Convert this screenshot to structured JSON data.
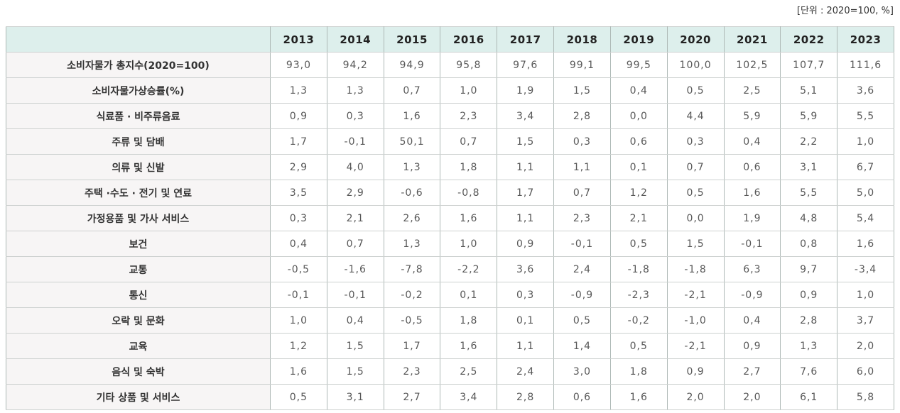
{
  "unit_note": "[단위 : 2020=100, %]",
  "table": {
    "corner_label": "",
    "years": [
      "2013",
      "2014",
      "2015",
      "2016",
      "2017",
      "2018",
      "2019",
      "2020",
      "2021",
      "2022",
      "2023"
    ],
    "rows": [
      {
        "label": "소비자물가 총지수(2020=100)",
        "values": [
          "93,0",
          "94,2",
          "94,9",
          "95,8",
          "97,6",
          "99,1",
          "99,5",
          "100,0",
          "102,5",
          "107,7",
          "111,6"
        ]
      },
      {
        "label": "소비자물가상승률(%)",
        "values": [
          "1,3",
          "1,3",
          "0,7",
          "1,0",
          "1,9",
          "1,5",
          "0,4",
          "0,5",
          "2,5",
          "5,1",
          "3,6"
        ]
      },
      {
        "label": "식료품 · 비주류음료",
        "values": [
          "0,9",
          "0,3",
          "1,6",
          "2,3",
          "3,4",
          "2,8",
          "0,0",
          "4,4",
          "5,9",
          "5,9",
          "5,5"
        ]
      },
      {
        "label": "주류 및 담배",
        "values": [
          "1,7",
          "-0,1",
          "50,1",
          "0,7",
          "1,5",
          "0,3",
          "0,6",
          "0,3",
          "0,4",
          "2,2",
          "1,0"
        ]
      },
      {
        "label": "의류 및 신발",
        "values": [
          "2,9",
          "4,0",
          "1,3",
          "1,8",
          "1,1",
          "1,1",
          "0,1",
          "0,7",
          "0,6",
          "3,1",
          "6,7"
        ]
      },
      {
        "label": "주택 ·수도 · 전기 및 연료",
        "values": [
          "3,5",
          "2,9",
          "-0,6",
          "-0,8",
          "1,7",
          "0,7",
          "1,2",
          "0,5",
          "1,6",
          "5,5",
          "5,0"
        ]
      },
      {
        "label": "가정용품 및 가사 서비스",
        "values": [
          "0,3",
          "2,1",
          "2,6",
          "1,6",
          "1,1",
          "2,3",
          "2,1",
          "0,0",
          "1,9",
          "4,8",
          "5,4"
        ]
      },
      {
        "label": "보건",
        "values": [
          "0,4",
          "0,7",
          "1,3",
          "1,0",
          "0,9",
          "-0,1",
          "0,5",
          "1,5",
          "-0,1",
          "0,8",
          "1,6"
        ]
      },
      {
        "label": "교통",
        "values": [
          "-0,5",
          "-1,6",
          "-7,8",
          "-2,2",
          "3,6",
          "2,4",
          "-1,8",
          "-1,8",
          "6,3",
          "9,7",
          "-3,4"
        ]
      },
      {
        "label": "통신",
        "values": [
          "-0,1",
          "-0,1",
          "-0,2",
          "0,1",
          "0,3",
          "-0,9",
          "-2,3",
          "-2,1",
          "-0,9",
          "0,9",
          "1,0"
        ]
      },
      {
        "label": "오락 및 문화",
        "values": [
          "1,0",
          "0,4",
          "-0,5",
          "1,8",
          "0,1",
          "0,5",
          "-0,2",
          "-1,0",
          "0,4",
          "2,8",
          "3,7"
        ]
      },
      {
        "label": "교육",
        "values": [
          "1,2",
          "1,5",
          "1,7",
          "1,6",
          "1,1",
          "1,4",
          "0,5",
          "-2,1",
          "0,9",
          "1,3",
          "2,0"
        ]
      },
      {
        "label": "음식 및 숙박",
        "values": [
          "1,6",
          "1,5",
          "2,3",
          "2,5",
          "2,4",
          "3,0",
          "1,8",
          "0,9",
          "2,7",
          "7,6",
          "6,0"
        ]
      },
      {
        "label": "기타 상품 및 서비스",
        "values": [
          "0,5",
          "3,1",
          "2,7",
          "3,4",
          "2,8",
          "0,6",
          "1,6",
          "2,0",
          "2,0",
          "6,1",
          "5,8"
        ]
      }
    ]
  },
  "chart_data": {
    "type": "table",
    "unit_note": "[단위 : 2020=100, %]",
    "columns": [
      2013,
      2014,
      2015,
      2016,
      2017,
      2018,
      2019,
      2020,
      2021,
      2022,
      2023
    ],
    "rows": [
      {
        "label": "소비자물가 총지수(2020=100)",
        "values": [
          93.0,
          94.2,
          94.9,
          95.8,
          97.6,
          99.1,
          99.5,
          100.0,
          102.5,
          107.7,
          111.6
        ]
      },
      {
        "label": "소비자물가상승률(%)",
        "values": [
          1.3,
          1.3,
          0.7,
          1.0,
          1.9,
          1.5,
          0.4,
          0.5,
          2.5,
          5.1,
          3.6
        ]
      },
      {
        "label": "식료품 · 비주류음료",
        "values": [
          0.9,
          0.3,
          1.6,
          2.3,
          3.4,
          2.8,
          0.0,
          4.4,
          5.9,
          5.9,
          5.5
        ]
      },
      {
        "label": "주류 및 담배",
        "values": [
          1.7,
          -0.1,
          50.1,
          0.7,
          1.5,
          0.3,
          0.6,
          0.3,
          0.4,
          2.2,
          1.0
        ]
      },
      {
        "label": "의류 및 신발",
        "values": [
          2.9,
          4.0,
          1.3,
          1.8,
          1.1,
          1.1,
          0.1,
          0.7,
          0.6,
          3.1,
          6.7
        ]
      },
      {
        "label": "주택 ·수도 · 전기 및 연료",
        "values": [
          3.5,
          2.9,
          -0.6,
          -0.8,
          1.7,
          0.7,
          1.2,
          0.5,
          1.6,
          5.5,
          5.0
        ]
      },
      {
        "label": "가정용품 및 가사 서비스",
        "values": [
          0.3,
          2.1,
          2.6,
          1.6,
          1.1,
          2.3,
          2.1,
          0.0,
          1.9,
          4.8,
          5.4
        ]
      },
      {
        "label": "보건",
        "values": [
          0.4,
          0.7,
          1.3,
          1.0,
          0.9,
          -0.1,
          0.5,
          1.5,
          -0.1,
          0.8,
          1.6
        ]
      },
      {
        "label": "교통",
        "values": [
          -0.5,
          -1.6,
          -7.8,
          -2.2,
          3.6,
          2.4,
          -1.8,
          -1.8,
          6.3,
          9.7,
          -3.4
        ]
      },
      {
        "label": "통신",
        "values": [
          -0.1,
          -0.1,
          -0.2,
          0.1,
          0.3,
          -0.9,
          -2.3,
          -2.1,
          -0.9,
          0.9,
          1.0
        ]
      },
      {
        "label": "오락 및 문화",
        "values": [
          1.0,
          0.4,
          -0.5,
          1.8,
          0.1,
          0.5,
          -0.2,
          -1.0,
          0.4,
          2.8,
          3.7
        ]
      },
      {
        "label": "교육",
        "values": [
          1.2,
          1.5,
          1.7,
          1.6,
          1.1,
          1.4,
          0.5,
          -2.1,
          0.9,
          1.3,
          2.0
        ]
      },
      {
        "label": "음식 및 숙박",
        "values": [
          1.6,
          1.5,
          2.3,
          2.5,
          2.4,
          3.0,
          1.8,
          0.9,
          2.7,
          7.6,
          6.0
        ]
      },
      {
        "label": "기타 상품 및 서비스",
        "values": [
          0.5,
          3.1,
          2.7,
          3.4,
          2.8,
          0.6,
          1.6,
          2.0,
          2.0,
          6.1,
          5.8
        ]
      }
    ]
  },
  "colors": {
    "header_bg": "#ddefec",
    "label_bg": "#f7f5f5",
    "cell_bg": "#ffffff",
    "border_vertical": "#aeb9b6",
    "border_horizontal": "#cdd1d0",
    "label_text": "#333333",
    "value_text": "#585858"
  }
}
